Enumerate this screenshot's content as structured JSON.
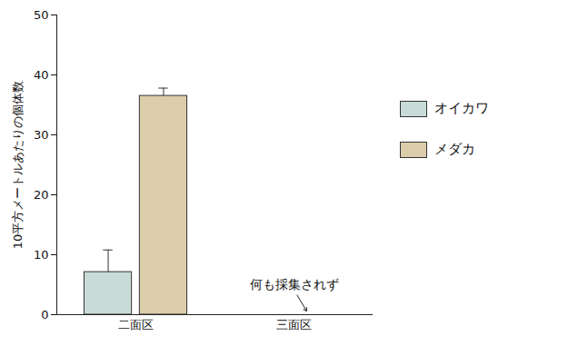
{
  "chart_data": {
    "type": "bar",
    "y_label": "10平方メートルあたりの個体数",
    "categories": [
      "二面区",
      "三面区"
    ],
    "series": [
      {
        "name": "オイカワ",
        "color": "#c8dbd8",
        "values": [
          7.1,
          0
        ],
        "errors": [
          3.7,
          0
        ]
      },
      {
        "name": "メダカ",
        "color": "#dccdab",
        "values": [
          36.5,
          0
        ],
        "errors": [
          1.3,
          0
        ]
      }
    ],
    "ylim": [
      0,
      50
    ],
    "yticks": [
      0,
      10,
      20,
      30,
      40,
      50
    ],
    "legend": "right",
    "annotations": [
      {
        "text": "何も採集されず",
        "category": "三面区"
      }
    ]
  }
}
